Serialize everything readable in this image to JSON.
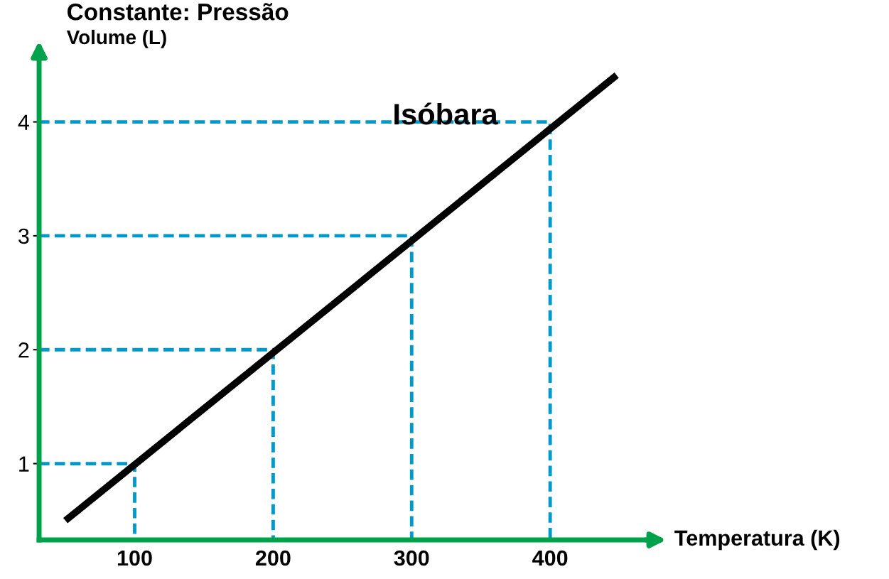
{
  "chart_data": {
    "type": "line",
    "title": "Constante: Pressão",
    "xlabel": "Temperatura (K)",
    "ylabel": "Volume (L)",
    "x": [
      50,
      448
    ],
    "series": [
      {
        "color": "#000000",
        "values": [
          0.5,
          4.41
        ],
        "line_style": "solid"
      },
      {
        "color": "#0099cc",
        "x": [
          31,
          100,
          100
        ],
        "values": [
          1,
          1,
          0.33
        ],
        "line_style": "dashed"
      },
      {
        "color": "#0099cc",
        "x": [
          31,
          200,
          200
        ],
        "values": [
          2,
          2,
          0.33
        ],
        "line_style": "dashed"
      },
      {
        "color": "#0099cc",
        "x": [
          31,
          300,
          300
        ],
        "values": [
          3,
          3,
          0.33
        ],
        "line_style": "dashed"
      },
      {
        "color": "#0099cc",
        "x": [
          31,
          400,
          400
        ],
        "values": [
          4,
          4,
          0.33
        ],
        "line_style": "dashed"
      }
    ],
    "xlim": [
      31,
      472
    ],
    "ylim": [
      0.33,
      4.6
    ],
    "xticks": [
      100,
      200,
      300,
      400
    ],
    "yticks": [
      1,
      2,
      3,
      4
    ],
    "annotations": [
      "Isóbara"
    ],
    "grid": false,
    "legend": false,
    "marker": "none"
  }
}
